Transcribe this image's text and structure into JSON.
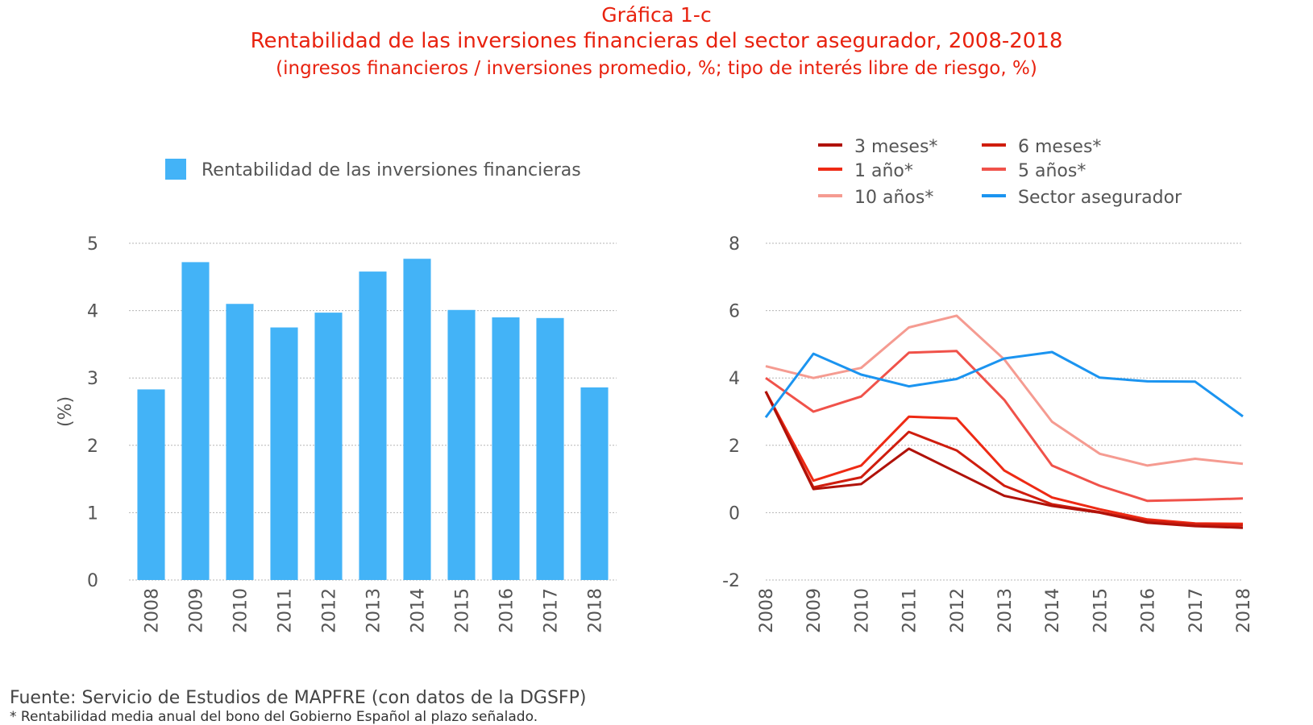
{
  "header": {
    "kicker": "Gráfica 1-c",
    "title": "Rentabilidad de las inversiones financieras del sector asegurador, 2008-2018",
    "subtitle": "(ingresos financieros / inversiones promedio, %; tipo de interés libre de riesgo, %)"
  },
  "footer": {
    "source": "Fuente: Servicio de Estudios de MAPFRE (con datos de la DGSFP)",
    "note": "* Rentabilidad media anual del bono del Gobierno Español al plazo señalado."
  },
  "chart_data": [
    {
      "type": "bar",
      "categories": [
        "2008",
        "2009",
        "2010",
        "2011",
        "2012",
        "2013",
        "2014",
        "2015",
        "2016",
        "2017",
        "2018"
      ],
      "series": [
        {
          "name": "Rentabilidad de las inversiones financieras",
          "color": "#43b3f7",
          "values": [
            2.83,
            4.72,
            4.1,
            3.75,
            3.97,
            4.58,
            4.77,
            4.01,
            3.9,
            3.89,
            2.86
          ]
        }
      ],
      "ylabel": "(%)",
      "yticks": [
        0,
        1,
        2,
        3,
        4,
        5
      ],
      "ylim": [
        0,
        5
      ],
      "grid": true,
      "legend": "top-left"
    },
    {
      "type": "line",
      "categories": [
        "2008",
        "2009",
        "2010",
        "2011",
        "2012",
        "2013",
        "2014",
        "2015",
        "2016",
        "2017",
        "2018"
      ],
      "series": [
        {
          "name": "3 meses*",
          "color": "#b0120a",
          "values": [
            3.6,
            0.7,
            0.85,
            1.9,
            1.2,
            0.5,
            0.2,
            0.0,
            -0.3,
            -0.4,
            -0.45
          ]
        },
        {
          "name": "6 meses*",
          "color": "#cf1d0e",
          "values": [
            3.6,
            0.75,
            1.05,
            2.4,
            1.85,
            0.8,
            0.25,
            0.02,
            -0.25,
            -0.35,
            -0.38
          ]
        },
        {
          "name": "1 año*",
          "color": "#ee2a14",
          "values": [
            3.6,
            0.95,
            1.4,
            2.85,
            2.8,
            1.25,
            0.45,
            0.1,
            -0.2,
            -0.32,
            -0.33
          ]
        },
        {
          "name": "5 años*",
          "color": "#f0524a",
          "values": [
            4.0,
            3.0,
            3.45,
            4.75,
            4.8,
            3.35,
            1.4,
            0.8,
            0.35,
            0.38,
            0.42
          ]
        },
        {
          "name": "10 años*",
          "color": "#f59b91",
          "values": [
            4.35,
            4.0,
            4.3,
            5.5,
            5.85,
            4.55,
            2.7,
            1.75,
            1.4,
            1.6,
            1.45
          ]
        },
        {
          "name": "Sector asegurador",
          "color": "#1b94f0",
          "values": [
            2.83,
            4.72,
            4.1,
            3.75,
            3.97,
            4.58,
            4.77,
            4.01,
            3.9,
            3.89,
            2.86
          ]
        }
      ],
      "yticks": [
        -2,
        0,
        2,
        4,
        6,
        8
      ],
      "ylim": [
        -2,
        8
      ],
      "grid": true,
      "legend": "top"
    }
  ]
}
